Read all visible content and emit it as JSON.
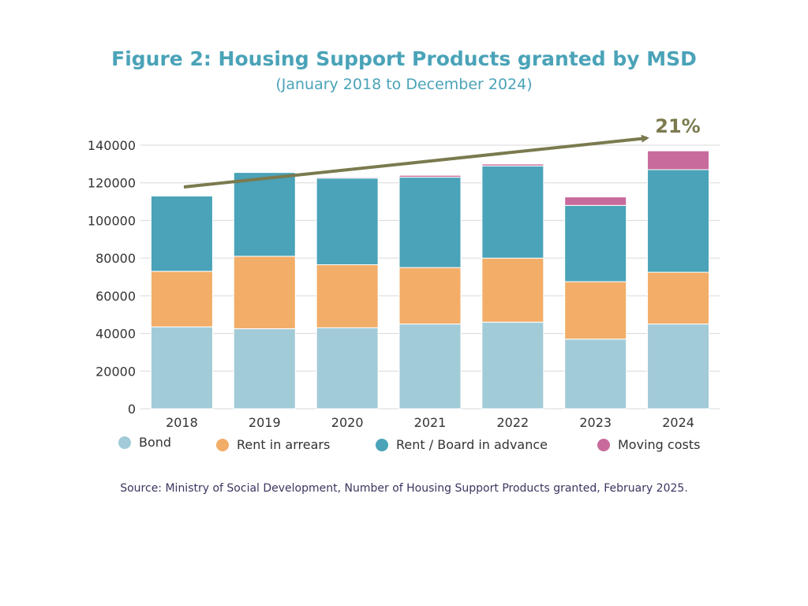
{
  "chart_data": {
    "type": "bar",
    "stacked": true,
    "title": "Figure 2: Housing Support Products granted by MSD",
    "subtitle": "(January 2018 to December 2024)",
    "categories": [
      "2018",
      "2019",
      "2020",
      "2021",
      "2022",
      "2023",
      "2024"
    ],
    "series": [
      {
        "name": "Bond",
        "color": "#a2cbd8",
        "values": [
          43500,
          42500,
          43000,
          45000,
          46000,
          37000,
          45000
        ]
      },
      {
        "name": "Rent in arrears",
        "color": "#f2ad68",
        "values": [
          29500,
          38500,
          33500,
          30000,
          34000,
          30500,
          27500
        ]
      },
      {
        "name": "Rent / Board in advance",
        "color": "#4aa3b8",
        "values": [
          40000,
          44500,
          46000,
          48000,
          49000,
          40500,
          54500
        ]
      },
      {
        "name": "Moving costs",
        "color": "#c96a9d",
        "values": [
          0,
          0,
          500,
          1000,
          1000,
          4500,
          10000
        ]
      }
    ],
    "ylim": [
      0,
      140000
    ],
    "yticks": [
      "0",
      "20000",
      "40000",
      "60000",
      "80000",
      "100000",
      "120000",
      "140000"
    ],
    "grid": true,
    "legend_position": "bottom",
    "annotation": {
      "text": "21%",
      "color": "#7b7a4f"
    },
    "source": "Source: Ministry of Social Development, Number of Housing Support Products granted, February 2025."
  }
}
